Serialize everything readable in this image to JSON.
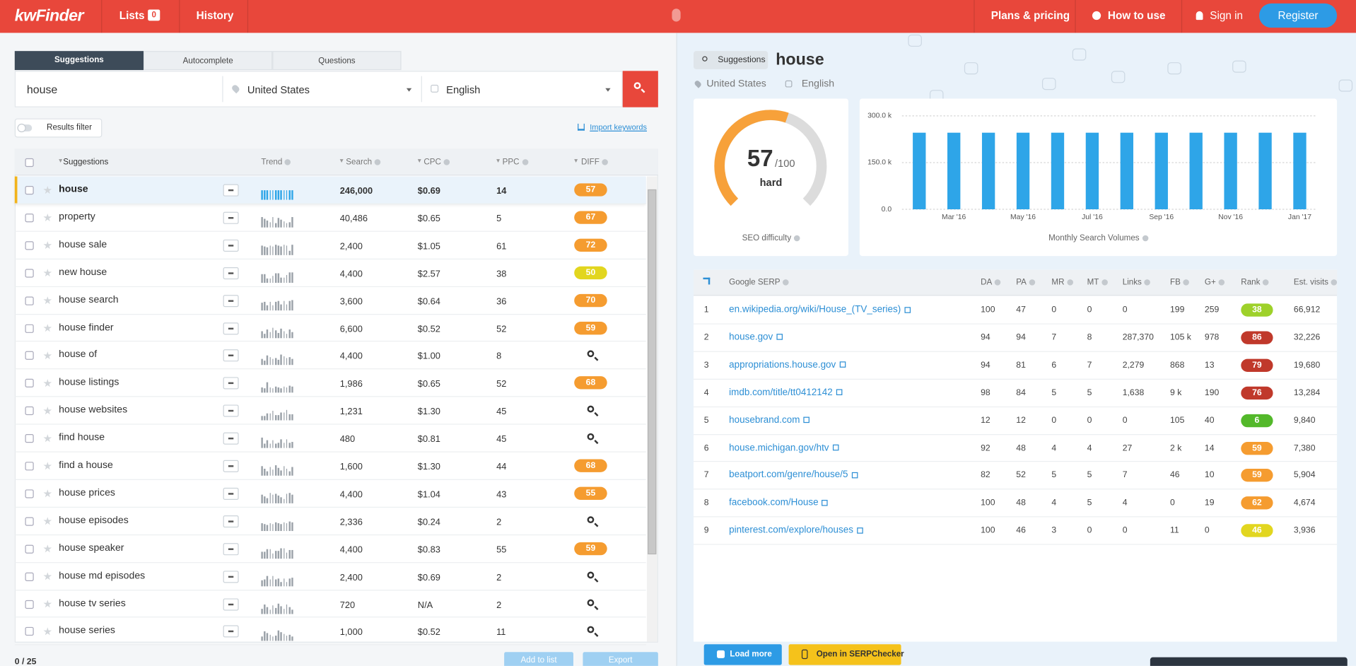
{
  "nav": {
    "logo": "kwFinder",
    "lists": "Lists",
    "lists_count": "0",
    "history": "History",
    "plans": "Plans & pricing",
    "how_to": "How to use",
    "sign_in": "Sign in",
    "register": "Register"
  },
  "search": {
    "tabs": [
      "Suggestions",
      "Autocomplete",
      "Questions"
    ],
    "query": "house",
    "location": "United States",
    "language": "English",
    "results_filter": "Results filter",
    "import": "Import keywords"
  },
  "keywords": {
    "columns": [
      "Suggestions",
      "Trend",
      "Search",
      "CPC",
      "PPC",
      "DIFF"
    ],
    "rows": [
      {
        "keyword": "house",
        "search": "246,000",
        "cpc": "$0.69",
        "ppc": "14",
        "diff": "57"
      },
      {
        "keyword": "property",
        "search": "40,486",
        "cpc": "$0.65",
        "ppc": "5",
        "diff": "67"
      },
      {
        "keyword": "house sale",
        "search": "2,400",
        "cpc": "$1.05",
        "ppc": "61",
        "diff": "72"
      },
      {
        "keyword": "new house",
        "search": "4,400",
        "cpc": "$2.57",
        "ppc": "38",
        "diff": "50"
      },
      {
        "keyword": "house search",
        "search": "3,600",
        "cpc": "$0.64",
        "ppc": "36",
        "diff": "70"
      },
      {
        "keyword": "house finder",
        "search": "6,600",
        "cpc": "$0.52",
        "ppc": "52",
        "diff": "59"
      },
      {
        "keyword": "house of",
        "search": "4,400",
        "cpc": "$1.00",
        "ppc": "8",
        "diff": null
      },
      {
        "keyword": "house listings",
        "search": "1,986",
        "cpc": "$0.65",
        "ppc": "52",
        "diff": "68"
      },
      {
        "keyword": "house websites",
        "search": "1,231",
        "cpc": "$1.30",
        "ppc": "45",
        "diff": null
      },
      {
        "keyword": "find house",
        "search": "480",
        "cpc": "$0.81",
        "ppc": "45",
        "diff": null
      },
      {
        "keyword": "find a house",
        "search": "1,600",
        "cpc": "$1.30",
        "ppc": "44",
        "diff": "68"
      },
      {
        "keyword": "house prices",
        "search": "4,400",
        "cpc": "$1.04",
        "ppc": "43",
        "diff": "55"
      },
      {
        "keyword": "house episodes",
        "search": "2,336",
        "cpc": "$0.24",
        "ppc": "2",
        "diff": null
      },
      {
        "keyword": "house speaker",
        "search": "4,400",
        "cpc": "$0.83",
        "ppc": "55",
        "diff": "59"
      },
      {
        "keyword": "house md episodes",
        "search": "2,400",
        "cpc": "$0.69",
        "ppc": "2",
        "diff": null
      },
      {
        "keyword": "house tv series",
        "search": "720",
        "cpc": "N/A",
        "ppc": "2",
        "diff": null
      },
      {
        "keyword": "house series",
        "search": "1,000",
        "cpc": "$0.52",
        "ppc": "11",
        "diff": null
      }
    ],
    "selected_count": "0 / 25",
    "add_to_list": "Add to list",
    "export": "Export"
  },
  "detail": {
    "tag": "Suggestions",
    "keyword": "house",
    "location": "United States",
    "language": "English",
    "seo": {
      "score": 57,
      "max": {
        "value": 100,
        "label": "/100"
      },
      "label": "hard",
      "caption": "SEO difficulty"
    }
  },
  "chart_data": {
    "type": "bar",
    "title": "Monthly Search Volumes",
    "categories": [
      null,
      "Mar '16",
      null,
      "May '16",
      null,
      "Jul '16",
      null,
      "Sep '16",
      null,
      "Nov '16",
      null,
      "Jan '17"
    ],
    "values": [
      246000,
      246000,
      246000,
      246000,
      246000,
      246000,
      246000,
      246000,
      246000,
      246000,
      246000,
      246000
    ],
    "color": "#2ea5e8",
    "ylim": [
      0,
      300000
    ],
    "yticks": [
      {
        "value": 0,
        "label": "0.0"
      },
      {
        "value": 150000,
        "label": "150.0 k"
      },
      {
        "value": 300000,
        "label": "300.0 k"
      }
    ],
    "grid": true
  },
  "serp": {
    "columns": [
      "Google SERP",
      "DA",
      "PA",
      "MR",
      "MT",
      "Links",
      "FB",
      "G+",
      "Rank",
      "Est. visits"
    ],
    "rows": [
      [
        "1",
        "en.wikipedia.org/wiki/House_(TV_series)",
        "100",
        "47",
        "0",
        "0",
        "0",
        "199",
        "259",
        "38",
        "66,912"
      ],
      [
        "2",
        "house.gov",
        "94",
        "94",
        "7",
        "8",
        "287,370",
        "105 k",
        "978",
        "86",
        "32,226"
      ],
      [
        "3",
        "appropriations.house.gov",
        "94",
        "81",
        "6",
        "7",
        "2,279",
        "868",
        "13",
        "79",
        "19,680"
      ],
      [
        "4",
        "imdb.com/title/tt0412142",
        "98",
        "84",
        "5",
        "5",
        "1,638",
        "9 k",
        "190",
        "76",
        "13,284"
      ],
      [
        "5",
        "housebrand.com",
        "12",
        "12",
        "0",
        "0",
        "0",
        "105",
        "40",
        "6",
        "9,840"
      ],
      [
        "6",
        "house.michigan.gov/htv",
        "92",
        "48",
        "4",
        "4",
        "27",
        "2 k",
        "14",
        "59",
        "7,380"
      ],
      [
        "7",
        "beatport.com/genre/house/5",
        "82",
        "52",
        "5",
        "5",
        "7",
        "46",
        "10",
        "59",
        "5,904"
      ],
      [
        "8",
        "facebook.com/House",
        "100",
        "48",
        "4",
        "5",
        "4",
        "0",
        "19",
        "62",
        "4,674"
      ],
      [
        "9",
        "pinterest.com/explore/houses",
        "100",
        "46",
        "3",
        "0",
        "0",
        "11",
        "0",
        "46",
        "3,936"
      ]
    ],
    "load_more": "Load more",
    "open": "Open in SERPChecker"
  }
}
